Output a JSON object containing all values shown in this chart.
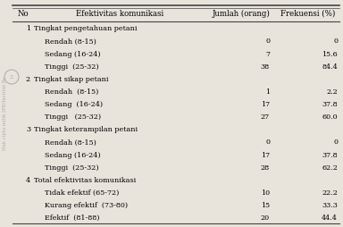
{
  "col_headers": [
    "No",
    "Efektivitas komunikasi",
    "Jumlah (orang)",
    "Frekuensi (%)"
  ],
  "rows": [
    {
      "no": "1",
      "label": "Tingkat pengetahuan petani",
      "jumlah": "",
      "frekuensi": "",
      "is_header": true
    },
    {
      "no": "",
      "label": "Rendah (8-15)",
      "jumlah": "0",
      "frekuensi": "0",
      "is_header": false
    },
    {
      "no": "",
      "label": "Sedang (16-24)",
      "jumlah": "7",
      "frekuensi": "15.6",
      "is_header": false
    },
    {
      "no": "",
      "label": "Tinggi  (25-32)",
      "jumlah": "38",
      "frekuensi": "84.4",
      "is_header": false
    },
    {
      "no": "2",
      "label": "Tingkat sikap petani",
      "jumlah": "",
      "frekuensi": "",
      "is_header": true
    },
    {
      "no": "",
      "label": "Rendah  (8-15)",
      "jumlah": "1",
      "frekuensi": "2.2",
      "is_header": false
    },
    {
      "no": "",
      "label": "Sedang  (16-24)",
      "jumlah": "17",
      "frekuensi": "37.8",
      "is_header": false
    },
    {
      "no": "",
      "label": "Tinggi   (25-32)",
      "jumlah": "27",
      "frekuensi": "60.0",
      "is_header": false
    },
    {
      "no": "3",
      "label": "Tingkat keterampilan petani",
      "jumlah": "",
      "frekuensi": "",
      "is_header": true
    },
    {
      "no": "",
      "label": "Rendah (8-15)",
      "jumlah": "0",
      "frekuensi": "0",
      "is_header": false
    },
    {
      "no": "",
      "label": "Sedang (16-24)",
      "jumlah": "17",
      "frekuensi": "37.8",
      "is_header": false
    },
    {
      "no": "",
      "label": "Tinggi  (25-32)",
      "jumlah": "28",
      "frekuensi": "62.2",
      "is_header": false
    },
    {
      "no": "4",
      "label": "Total efektivitas komunikasi",
      "jumlah": "",
      "frekuensi": "",
      "is_header": true
    },
    {
      "no": "",
      "label": "Tidak efektif (65-72)",
      "jumlah": "10",
      "frekuensi": "22.2",
      "is_header": false
    },
    {
      "no": "",
      "label": "Kurang efektif  (73-80)",
      "jumlah": "15",
      "frekuensi": "33.3",
      "is_header": false
    },
    {
      "no": "",
      "label": "Efektif  (81-88)",
      "jumlah": "20",
      "frekuensi": "44.4",
      "is_header": false
    }
  ],
  "bg_color": "#e8e4dc",
  "line_color": "#444444",
  "font_size": 5.8,
  "header_font_size": 6.2,
  "watermark_text": "Hak cipta milik IPB/Institut Pe",
  "fig_width": 3.84,
  "fig_height": 2.55,
  "dpi": 100
}
